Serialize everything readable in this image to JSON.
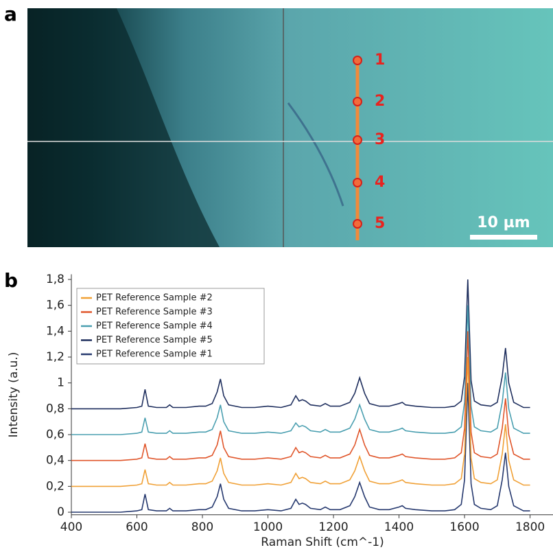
{
  "panel_labels": [
    "a",
    "b"
  ],
  "image": {
    "points": [
      "1",
      "2",
      "3",
      "4",
      "5"
    ],
    "scale_bar": "10 µm"
  },
  "chart_data": {
    "type": "line",
    "x_label": "Raman Shift (cm^-1)",
    "y_label": "Intensity (a.u.)",
    "x": [
      400,
      450,
      500,
      550,
      600,
      615,
      625,
      635,
      660,
      690,
      700,
      710,
      750,
      790,
      800,
      810,
      830,
      845,
      855,
      865,
      880,
      920,
      960,
      1000,
      1040,
      1070,
      1085,
      1095,
      1105,
      1115,
      1130,
      1160,
      1175,
      1190,
      1220,
      1250,
      1265,
      1280,
      1295,
      1310,
      1340,
      1370,
      1400,
      1410,
      1420,
      1450,
      1500,
      1540,
      1570,
      1590,
      1600,
      1610,
      1620,
      1630,
      1650,
      1680,
      1700,
      1715,
      1725,
      1735,
      1750,
      1780,
      1800
    ],
    "series": [
      {
        "name": "PET Reference Sample #2",
        "color": "#f0a035",
        "values": [
          0.2,
          0.2,
          0.2,
          0.2,
          0.21,
          0.22,
          0.33,
          0.22,
          0.21,
          0.21,
          0.23,
          0.21,
          0.21,
          0.22,
          0.22,
          0.22,
          0.24,
          0.32,
          0.42,
          0.3,
          0.23,
          0.21,
          0.21,
          0.22,
          0.21,
          0.23,
          0.3,
          0.26,
          0.27,
          0.26,
          0.23,
          0.22,
          0.24,
          0.22,
          0.22,
          0.25,
          0.32,
          0.43,
          0.32,
          0.24,
          0.22,
          0.22,
          0.24,
          0.25,
          0.23,
          0.22,
          0.21,
          0.21,
          0.22,
          0.26,
          0.45,
          1.2,
          0.42,
          0.26,
          0.23,
          0.22,
          0.25,
          0.45,
          0.68,
          0.4,
          0.25,
          0.21,
          0.21
        ]
      },
      {
        "name": "PET Reference Sample #3",
        "color": "#e0552a",
        "values": [
          0.4,
          0.4,
          0.4,
          0.4,
          0.41,
          0.42,
          0.53,
          0.42,
          0.41,
          0.41,
          0.43,
          0.41,
          0.41,
          0.42,
          0.42,
          0.42,
          0.44,
          0.52,
          0.63,
          0.5,
          0.43,
          0.41,
          0.41,
          0.42,
          0.41,
          0.43,
          0.5,
          0.46,
          0.47,
          0.46,
          0.43,
          0.42,
          0.44,
          0.42,
          0.42,
          0.45,
          0.52,
          0.64,
          0.52,
          0.44,
          0.42,
          0.42,
          0.44,
          0.45,
          0.43,
          0.42,
          0.41,
          0.41,
          0.42,
          0.46,
          0.65,
          1.4,
          0.62,
          0.46,
          0.43,
          0.42,
          0.45,
          0.65,
          0.88,
          0.6,
          0.45,
          0.41,
          0.41
        ]
      },
      {
        "name": "PET Reference Sample #4",
        "color": "#4a9fb0",
        "values": [
          0.6,
          0.6,
          0.6,
          0.6,
          0.61,
          0.62,
          0.73,
          0.62,
          0.61,
          0.61,
          0.63,
          0.61,
          0.61,
          0.62,
          0.62,
          0.62,
          0.64,
          0.73,
          0.83,
          0.7,
          0.63,
          0.61,
          0.61,
          0.62,
          0.61,
          0.63,
          0.69,
          0.66,
          0.67,
          0.66,
          0.63,
          0.62,
          0.64,
          0.62,
          0.62,
          0.65,
          0.72,
          0.83,
          0.72,
          0.64,
          0.62,
          0.62,
          0.64,
          0.65,
          0.63,
          0.62,
          0.61,
          0.61,
          0.62,
          0.66,
          0.85,
          1.6,
          0.82,
          0.66,
          0.63,
          0.62,
          0.65,
          0.85,
          1.08,
          0.8,
          0.65,
          0.61,
          0.61
        ]
      },
      {
        "name": "PET Reference Sample #5",
        "color": "#1f2f5e",
        "values": [
          0.8,
          0.8,
          0.8,
          0.8,
          0.81,
          0.82,
          0.95,
          0.82,
          0.81,
          0.81,
          0.83,
          0.81,
          0.81,
          0.82,
          0.82,
          0.82,
          0.84,
          0.93,
          1.03,
          0.9,
          0.83,
          0.81,
          0.81,
          0.82,
          0.81,
          0.83,
          0.9,
          0.86,
          0.87,
          0.86,
          0.83,
          0.82,
          0.84,
          0.82,
          0.82,
          0.85,
          0.92,
          1.04,
          0.92,
          0.84,
          0.82,
          0.82,
          0.84,
          0.85,
          0.83,
          0.82,
          0.81,
          0.81,
          0.82,
          0.86,
          1.05,
          1.8,
          1.02,
          0.86,
          0.83,
          0.82,
          0.85,
          1.05,
          1.27,
          1.0,
          0.85,
          0.81,
          0.81
        ]
      },
      {
        "name": "PET Reference Sample #1",
        "color": "#25386e",
        "values": [
          0,
          0,
          0,
          0,
          0.01,
          0.02,
          0.14,
          0.02,
          0.01,
          0.01,
          0.03,
          0.01,
          0.01,
          0.02,
          0.02,
          0.02,
          0.04,
          0.12,
          0.22,
          0.1,
          0.03,
          0.01,
          0.01,
          0.02,
          0.01,
          0.03,
          0.1,
          0.06,
          0.07,
          0.06,
          0.03,
          0.02,
          0.04,
          0.02,
          0.02,
          0.05,
          0.12,
          0.23,
          0.12,
          0.04,
          0.02,
          0.02,
          0.04,
          0.05,
          0.03,
          0.02,
          0.01,
          0.01,
          0.02,
          0.06,
          0.25,
          1.0,
          0.22,
          0.06,
          0.03,
          0.02,
          0.05,
          0.25,
          0.46,
          0.2,
          0.05,
          0.01,
          0.01
        ]
      }
    ],
    "xlim": [
      400,
      1870
    ],
    "xticks": [
      400,
      600,
      800,
      1000,
      1200,
      1400,
      1600,
      1800
    ],
    "ylim": [
      -0.02,
      1.84
    ],
    "yticks": [
      0,
      {
        "value": 0.2,
        "label": "0,2"
      },
      {
        "value": 0.4,
        "label": "0,4"
      },
      {
        "value": 0.6,
        "label": "0,6"
      },
      {
        "value": 0.8,
        "label": "0,8"
      },
      1,
      {
        "value": 1.2,
        "label": "1,2"
      },
      {
        "value": 1.4,
        "label": "1,4"
      },
      {
        "value": 1.6,
        "label": "1,6"
      },
      {
        "value": 1.8,
        "label": "1,8"
      }
    ],
    "legend": "upper-left"
  }
}
